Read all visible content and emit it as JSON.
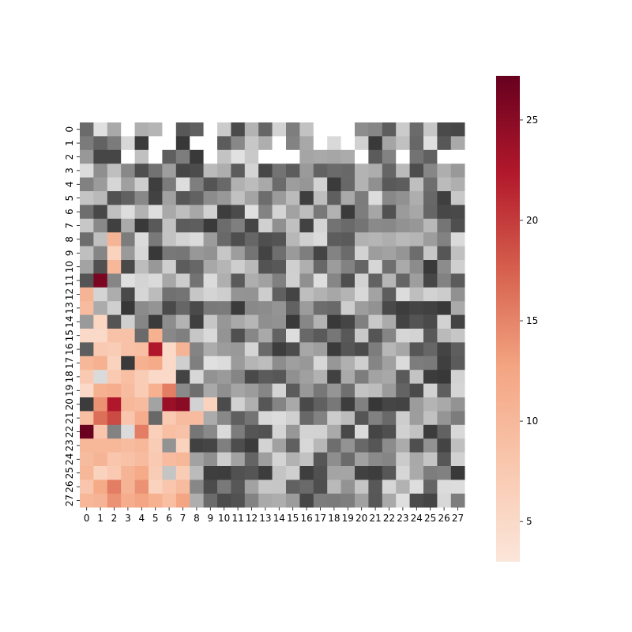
{
  "chart_data": {
    "type": "heatmap",
    "rows": 28,
    "cols": 28,
    "x_tick_labels": [
      "0",
      "1",
      "2",
      "3",
      "4",
      "5",
      "6",
      "7",
      "8",
      "9",
      "10",
      "11",
      "12",
      "13",
      "14",
      "15",
      "16",
      "17",
      "18",
      "19",
      "20",
      "21",
      "22",
      "23",
      "24",
      "25",
      "26",
      "27"
    ],
    "y_tick_labels": [
      "0",
      "1",
      "2",
      "3",
      "4",
      "5",
      "6",
      "7",
      "8",
      "9",
      "10",
      "11",
      "12",
      "13",
      "14",
      "15",
      "16",
      "17",
      "18",
      "19",
      "20",
      "21",
      "22",
      "23",
      "24",
      "25",
      "26",
      "27"
    ],
    "colorbar": {
      "min": 3,
      "max": 27.2,
      "ticks": [
        5,
        10,
        15,
        20,
        25
      ],
      "colormap": "Reds (light peach to dark red)"
    },
    "masking": "values below the colormap's lower triangle region shown in grayscale; lower-left region colored",
    "colored_cells_pattern": "lower-left triangle (below anti-diagonal band) uses red scale; remaining cells use gray scale",
    "values": [
      [
        null,
        null,
        null,
        null,
        null,
        null,
        null,
        null,
        null,
        null,
        null,
        null,
        null,
        null,
        null,
        null,
        null,
        null,
        null,
        null,
        null,
        null,
        null,
        null,
        null,
        null,
        null,
        null
      ],
      [
        null,
        null,
        null,
        null,
        null,
        null,
        null,
        null,
        null,
        null,
        null,
        null,
        null,
        null,
        null,
        null,
        null,
        null,
        null,
        null,
        null,
        null,
        null,
        null,
        null,
        null,
        null,
        null
      ],
      [
        null,
        null,
        null,
        null,
        null,
        null,
        null,
        null,
        null,
        null,
        null,
        null,
        null,
        null,
        null,
        null,
        null,
        null,
        null,
        null,
        null,
        null,
        null,
        null,
        null,
        null,
        null,
        null
      ],
      [
        null,
        null,
        null,
        null,
        null,
        null,
        null,
        null,
        null,
        null,
        null,
        null,
        null,
        null,
        null,
        null,
        null,
        null,
        null,
        null,
        null,
        null,
        null,
        null,
        null,
        null,
        null,
        null
      ],
      [
        null,
        null,
        null,
        null,
        null,
        null,
        null,
        null,
        null,
        null,
        null,
        null,
        null,
        null,
        null,
        null,
        null,
        null,
        null,
        null,
        null,
        null,
        null,
        null,
        null,
        null,
        null,
        null
      ],
      [
        null,
        null,
        null,
        null,
        null,
        null,
        null,
        null,
        null,
        null,
        null,
        null,
        null,
        null,
        null,
        null,
        null,
        null,
        null,
        null,
        null,
        null,
        null,
        null,
        null,
        null,
        null,
        null
      ],
      [
        null,
        null,
        null,
        null,
        null,
        null,
        null,
        null,
        null,
        null,
        null,
        null,
        null,
        null,
        null,
        null,
        null,
        null,
        null,
        null,
        null,
        null,
        null,
        null,
        null,
        null,
        null,
        null
      ],
      [
        null,
        null,
        null,
        null,
        null,
        null,
        null,
        null,
        null,
        null,
        null,
        null,
        null,
        null,
        null,
        null,
        null,
        null,
        null,
        null,
        null,
        null,
        null,
        null,
        null,
        null,
        null,
        null
      ],
      [
        null,
        null,
        10.5,
        null,
        null,
        null,
        null,
        null,
        null,
        null,
        null,
        null,
        null,
        null,
        null,
        null,
        null,
        null,
        null,
        null,
        null,
        null,
        null,
        null,
        null,
        null,
        null,
        null
      ],
      [
        null,
        null,
        6.0,
        null,
        null,
        null,
        null,
        null,
        null,
        null,
        null,
        null,
        null,
        null,
        null,
        null,
        null,
        null,
        null,
        null,
        null,
        null,
        null,
        null,
        null,
        null,
        null,
        null
      ],
      [
        null,
        null,
        10.0,
        null,
        null,
        null,
        null,
        null,
        null,
        null,
        null,
        null,
        null,
        null,
        null,
        null,
        null,
        null,
        null,
        null,
        null,
        null,
        null,
        null,
        null,
        null,
        null,
        null
      ],
      [
        null,
        26.0,
        null,
        null,
        null,
        null,
        null,
        null,
        null,
        null,
        null,
        null,
        null,
        null,
        null,
        null,
        null,
        null,
        null,
        null,
        null,
        null,
        null,
        null,
        null,
        null,
        null,
        null
      ],
      [
        10.5,
        null,
        null,
        null,
        null,
        null,
        null,
        null,
        null,
        null,
        null,
        null,
        null,
        null,
        null,
        null,
        null,
        null,
        null,
        null,
        null,
        null,
        null,
        null,
        null,
        null,
        null,
        null
      ],
      [
        9.5,
        null,
        null,
        null,
        null,
        null,
        null,
        null,
        null,
        null,
        null,
        null,
        null,
        null,
        null,
        null,
        null,
        null,
        null,
        null,
        null,
        null,
        null,
        null,
        null,
        null,
        null,
        null
      ],
      [
        null,
        5.5,
        null,
        null,
        null,
        null,
        null,
        null,
        null,
        null,
        null,
        null,
        null,
        null,
        null,
        null,
        null,
        null,
        null,
        null,
        null,
        null,
        null,
        null,
        null,
        null,
        null,
        null
      ],
      [
        5.0,
        5.0,
        8.5,
        8.5,
        null,
        11.0,
        null,
        null,
        null,
        null,
        null,
        null,
        null,
        null,
        null,
        null,
        null,
        null,
        null,
        null,
        null,
        null,
        null,
        null,
        null,
        null,
        null,
        null
      ],
      [
        null,
        7.5,
        7.0,
        8.5,
        9.0,
        22.5,
        5.0,
        10.5,
        null,
        null,
        null,
        null,
        null,
        null,
        null,
        null,
        null,
        null,
        null,
        null,
        null,
        null,
        null,
        null,
        null,
        null,
        null,
        null
      ],
      [
        10.0,
        11.0,
        6.0,
        null,
        11.0,
        12.0,
        5.0,
        null,
        null,
        null,
        null,
        null,
        null,
        null,
        null,
        null,
        null,
        null,
        null,
        null,
        null,
        null,
        null,
        null,
        null,
        null,
        null,
        null
      ],
      [
        7.5,
        null,
        7.5,
        9.0,
        7.0,
        5.0,
        5.0,
        null,
        null,
        null,
        null,
        null,
        null,
        null,
        null,
        null,
        null,
        null,
        null,
        null,
        null,
        null,
        null,
        null,
        null,
        null,
        null,
        null
      ],
      [
        5.0,
        11.0,
        11.5,
        9.5,
        7.0,
        11.0,
        15.5,
        null,
        null,
        null,
        null,
        null,
        null,
        null,
        null,
        null,
        null,
        null,
        null,
        null,
        null,
        null,
        null,
        null,
        null,
        null,
        null,
        null
      ],
      [
        null,
        14.0,
        22.5,
        10.0,
        9.5,
        null,
        24.0,
        25.0,
        null,
        6.0,
        null,
        null,
        null,
        null,
        null,
        null,
        null,
        null,
        null,
        null,
        null,
        null,
        null,
        null,
        null,
        null,
        null,
        null
      ],
      [
        9.0,
        16.5,
        19.0,
        8.0,
        11.5,
        null,
        7.5,
        9.5,
        9.5,
        null,
        null,
        null,
        null,
        null,
        null,
        null,
        null,
        null,
        null,
        null,
        null,
        null,
        null,
        null,
        null,
        null,
        null,
        null
      ],
      [
        27.0,
        8.0,
        null,
        null,
        15.5,
        6.5,
        9.0,
        8.5,
        null,
        null,
        null,
        null,
        null,
        null,
        null,
        null,
        null,
        null,
        null,
        null,
        null,
        null,
        null,
        null,
        null,
        null,
        null,
        null
      ],
      [
        10.0,
        10.0,
        10.0,
        9.5,
        10.0,
        7.0,
        null,
        6.0,
        null,
        null,
        null,
        null,
        null,
        null,
        null,
        null,
        null,
        null,
        null,
        null,
        null,
        null,
        null,
        null,
        null,
        null,
        null,
        null
      ],
      [
        9.5,
        10.5,
        8.0,
        8.5,
        9.5,
        7.5,
        9.5,
        10.0,
        null,
        null,
        null,
        null,
        null,
        null,
        null,
        null,
        null,
        null,
        null,
        null,
        null,
        null,
        null,
        null,
        null,
        null,
        null,
        null
      ],
      [
        10.0,
        6.0,
        7.5,
        10.5,
        12.0,
        7.0,
        null,
        7.0,
        null,
        null,
        null,
        null,
        null,
        null,
        null,
        null,
        null,
        null,
        null,
        null,
        null,
        null,
        null,
        null,
        null,
        null,
        null,
        null
      ],
      [
        8.0,
        12.0,
        15.5,
        10.5,
        14.0,
        6.0,
        8.0,
        9.5,
        null,
        null,
        null,
        null,
        null,
        null,
        null,
        null,
        null,
        null,
        null,
        null,
        null,
        null,
        null,
        null,
        null,
        null,
        null,
        null
      ],
      [
        10.0,
        10.5,
        14.0,
        11.5,
        12.5,
        11.0,
        9.0,
        12.5,
        null,
        null,
        null,
        null,
        null,
        null,
        null,
        null,
        null,
        null,
        null,
        null,
        null,
        null,
        null,
        null,
        null,
        null,
        null,
        null
      ]
    ]
  },
  "colors": {
    "background": "#ffffff",
    "text": "#000000"
  }
}
